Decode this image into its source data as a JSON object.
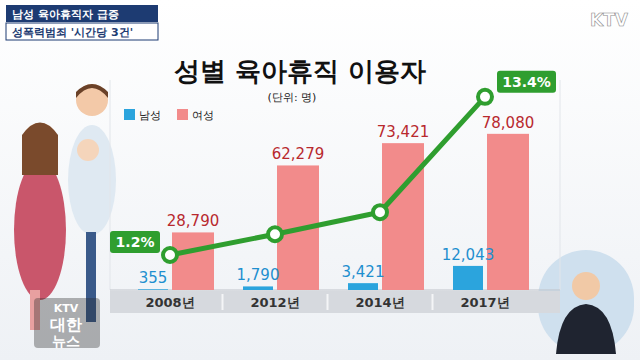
{
  "header": {
    "headlines": [
      "남성 육아휴직자 급증",
      "성폭력범죄 '시간당 3건'"
    ],
    "logo": "KTV",
    "program": [
      "KTV",
      "대한",
      "뉴스"
    ]
  },
  "chart_data": {
    "type": "bar",
    "title": "성별 육아휴직 이용자",
    "subtitle": "(단위: 명)",
    "categories": [
      "2008년",
      "2012년",
      "2014년",
      "2017년"
    ],
    "series": [
      {
        "name": "남성",
        "type": "bar",
        "color": "#2ba4dd",
        "values": [
          355,
          1790,
          3421,
          12043
        ],
        "value_labels": [
          "355",
          "1,790",
          "3,421",
          "12,043"
        ]
      },
      {
        "name": "여성",
        "type": "bar",
        "color": "#f28b8b",
        "values": [
          28790,
          62279,
          73421,
          78080
        ],
        "value_labels": [
          "28,790",
          "62,279",
          "73,421",
          "78,080"
        ]
      },
      {
        "type": "line",
        "axis": "y2",
        "color": "#2f9e2f",
        "marker": "circle",
        "line_style": "solid",
        "values": [
          1.2,
          2.8,
          4.5,
          13.4
        ],
        "value_labels": [
          "1.2%",
          null,
          null,
          "13.4%"
        ]
      }
    ],
    "ylim": [
      0,
      105000
    ],
    "y2lim": [
      -1.5,
      14.7
    ],
    "tick_labels": false,
    "grid": false,
    "legend": "upper left",
    "data_labels": true
  }
}
